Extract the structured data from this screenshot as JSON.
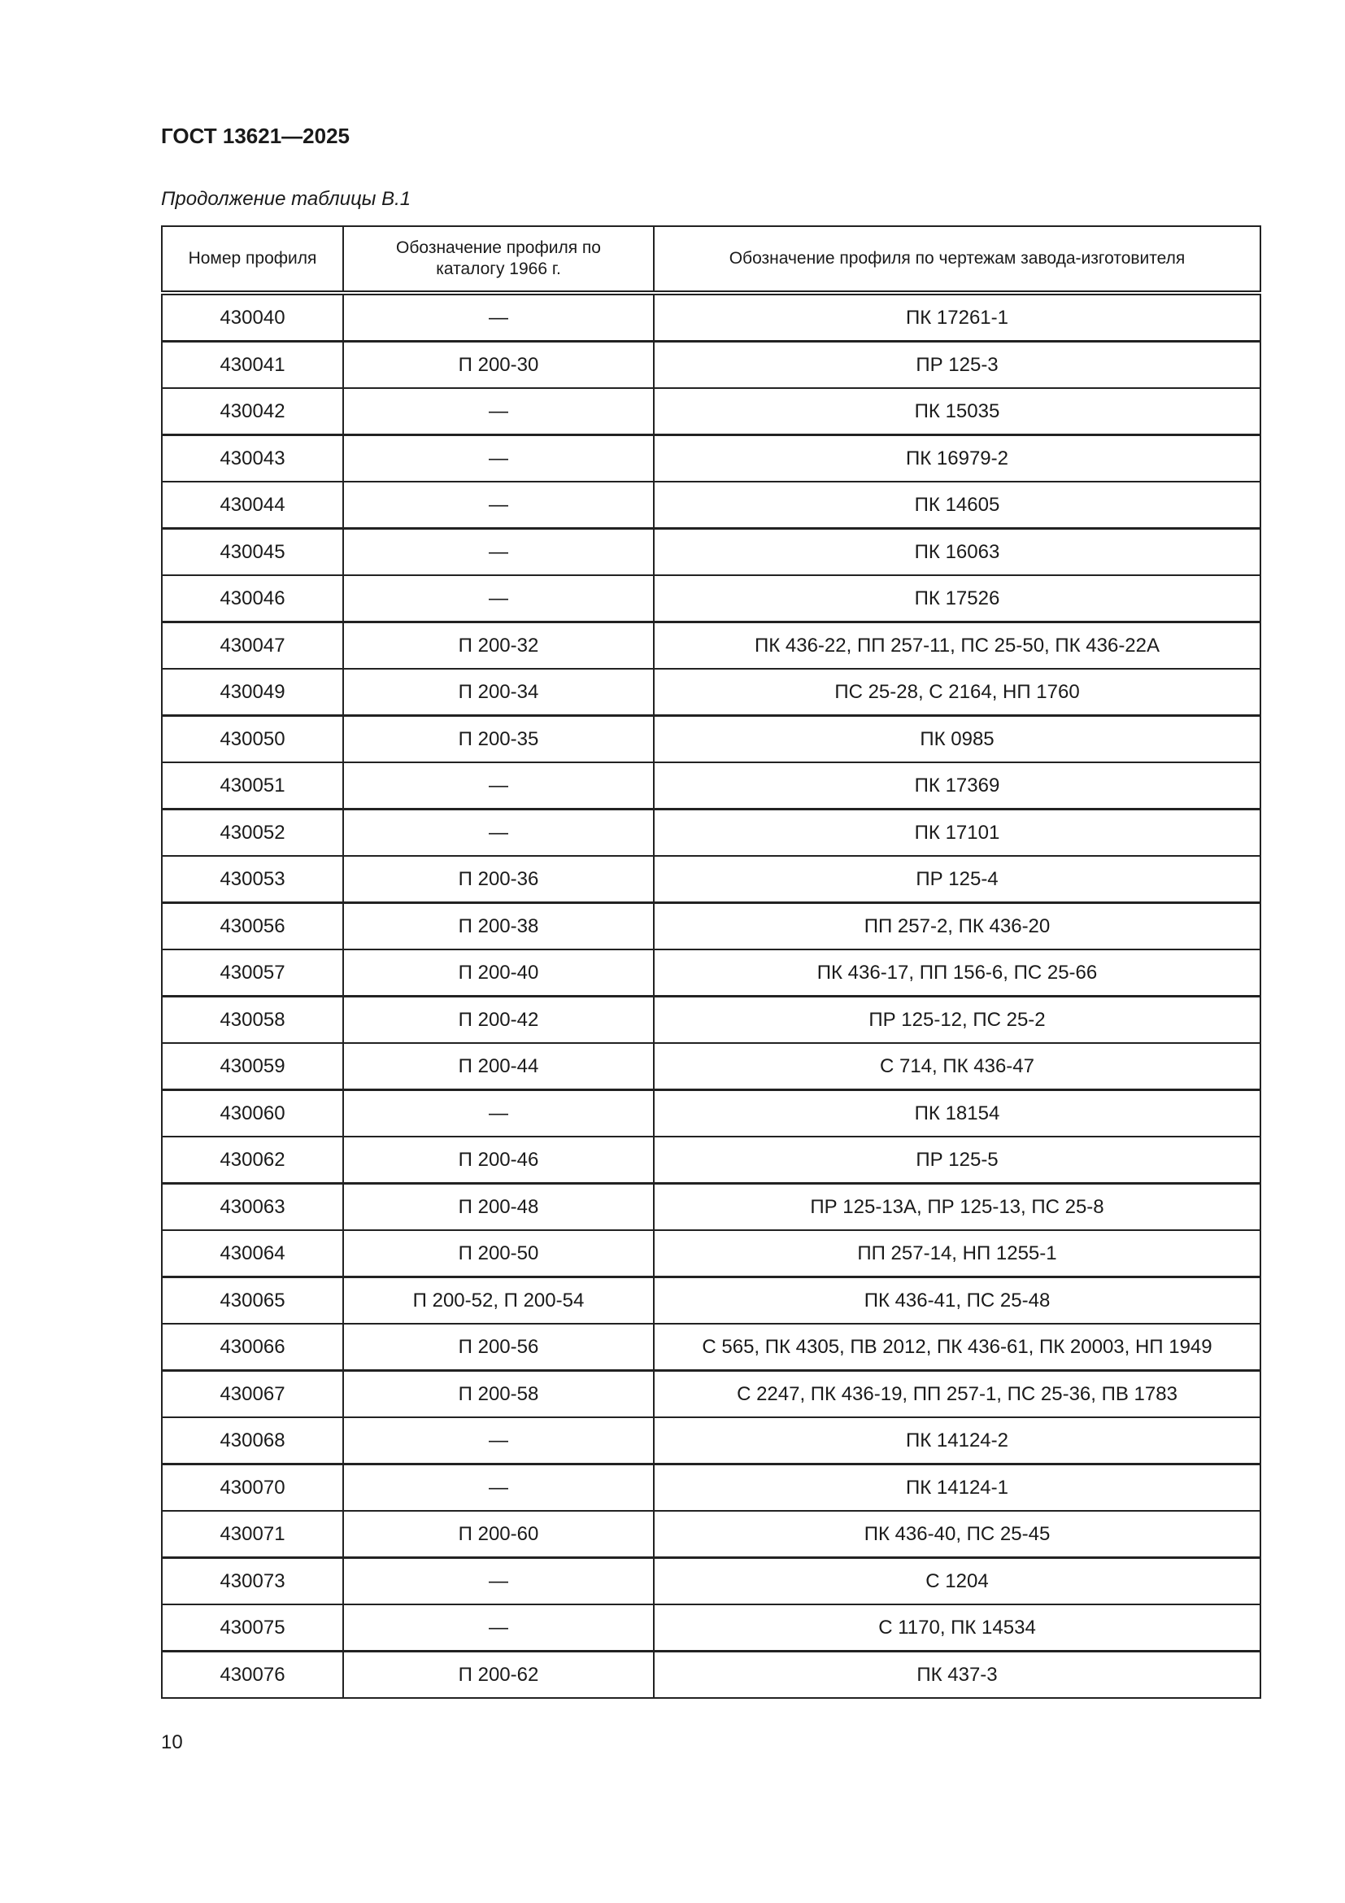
{
  "header": {
    "title": "ГОСТ 13621—2025"
  },
  "caption": "Продолжение таблицы В.1",
  "table": {
    "columns": [
      "Номер профиля",
      "Обозначение профиля по каталогу 1966 г.",
      "Обозначение профиля по чертежам завода-изготовителя"
    ],
    "rows": [
      [
        "430040",
        "—",
        "ПК 17261-1"
      ],
      [
        "430041",
        "П 200-30",
        "ПР 125-3"
      ],
      [
        "430042",
        "—",
        "ПК 15035"
      ],
      [
        "430043",
        "—",
        "ПК 16979-2"
      ],
      [
        "430044",
        "—",
        "ПК 14605"
      ],
      [
        "430045",
        "—",
        "ПК 16063"
      ],
      [
        "430046",
        "—",
        "ПК 17526"
      ],
      [
        "430047",
        "П 200-32",
        "ПК 436-22, ПП 257-11, ПС 25-50, ПК 436-22А"
      ],
      [
        "430049",
        "П 200-34",
        "ПС 25-28, С 2164, НП 1760"
      ],
      [
        "430050",
        "П 200-35",
        "ПК 0985"
      ],
      [
        "430051",
        "—",
        "ПК 17369"
      ],
      [
        "430052",
        "—",
        "ПК 17101"
      ],
      [
        "430053",
        "П 200-36",
        "ПР 125-4"
      ],
      [
        "430056",
        "П 200-38",
        "ПП 257-2, ПК 436-20"
      ],
      [
        "430057",
        "П 200-40",
        "ПК 436-17, ПП 156-6, ПС 25-66"
      ],
      [
        "430058",
        "П 200-42",
        "ПР 125-12, ПС 25-2"
      ],
      [
        "430059",
        "П 200-44",
        "С 714, ПК 436-47"
      ],
      [
        "430060",
        "—",
        "ПК 18154"
      ],
      [
        "430062",
        "П 200-46",
        "ПР 125-5"
      ],
      [
        "430063",
        "П 200-48",
        "ПР 125-13А, ПР 125-13, ПС 25-8"
      ],
      [
        "430064",
        "П 200-50",
        "ПП 257-14, НП 1255-1"
      ],
      [
        "430065",
        "П 200-52, П 200-54",
        "ПК 436-41, ПС 25-48"
      ],
      [
        "430066",
        "П 200-56",
        "С 565, ПК 4305, ПВ 2012, ПК 436-61, ПК 20003, НП 1949"
      ],
      [
        "430067",
        "П 200-58",
        "С 2247, ПК 436-19, ПП 257-1, ПС 25-36, ПВ 1783"
      ],
      [
        "430068",
        "—",
        "ПК 14124-2"
      ],
      [
        "430070",
        "—",
        "ПК 14124-1"
      ],
      [
        "430071",
        "П 200-60",
        "ПК 436-40, ПС 25-45"
      ],
      [
        "430073",
        "—",
        "С 1204"
      ],
      [
        "430075",
        "—",
        "С 1170, ПК 14534"
      ],
      [
        "430076",
        "П 200-62",
        "ПК 437-3"
      ]
    ]
  },
  "footer": {
    "page_number": "10"
  }
}
